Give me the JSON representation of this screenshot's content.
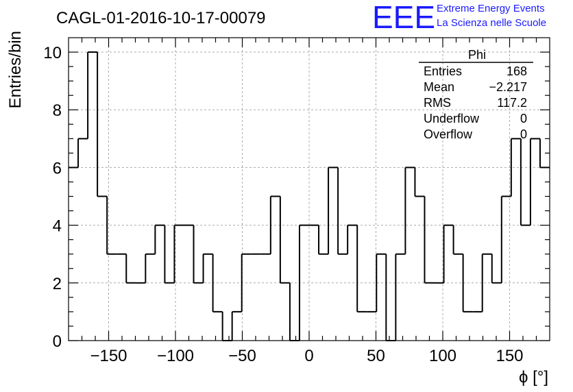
{
  "title": "CAGL-01-2016-10-17-00079",
  "logo": {
    "mark": "EEE",
    "line1": "Extreme Energy Events",
    "line2": "La Scienza nelle Scuole",
    "color": "#1a1aff"
  },
  "stats": {
    "name": "Phi",
    "rows": [
      {
        "label": "Entries",
        "value": "168"
      },
      {
        "label": "Mean",
        "value": "−2.217"
      },
      {
        "label": "RMS",
        "value": "117.2"
      },
      {
        "label": "Underflow",
        "value": "0"
      },
      {
        "label": "Overflow",
        "value": "0"
      }
    ]
  },
  "chart_data": {
    "type": "bar",
    "histogram": true,
    "title": "CAGL-01-2016-10-17-00079",
    "xlabel": "ϕ [°]",
    "ylabel": "Entries/bin",
    "xlim": [
      -180,
      180
    ],
    "ylim": [
      0,
      10.5
    ],
    "grid": true,
    "bin_width": 7.2,
    "xticks": [
      -150,
      -100,
      -50,
      0,
      50,
      100,
      150
    ],
    "xtick_labels": [
      "−150",
      "−100",
      "−50",
      "0",
      "50",
      "100",
      "150"
    ],
    "yticks": [
      0,
      2,
      4,
      6,
      8,
      10
    ],
    "ytick_labels": [
      "0",
      "2",
      "4",
      "6",
      "8",
      "10"
    ],
    "values": [
      6,
      7,
      10,
      5,
      3,
      3,
      2,
      2,
      3,
      4,
      2,
      4,
      4,
      2,
      3,
      1,
      0,
      1,
      3,
      3,
      3,
      5,
      2,
      0,
      4,
      4,
      3,
      6,
      3,
      4,
      1,
      1,
      3,
      0,
      3,
      6,
      5,
      2,
      2,
      4,
      3,
      1,
      1,
      3,
      2,
      5,
      7,
      4,
      7,
      6
    ]
  }
}
